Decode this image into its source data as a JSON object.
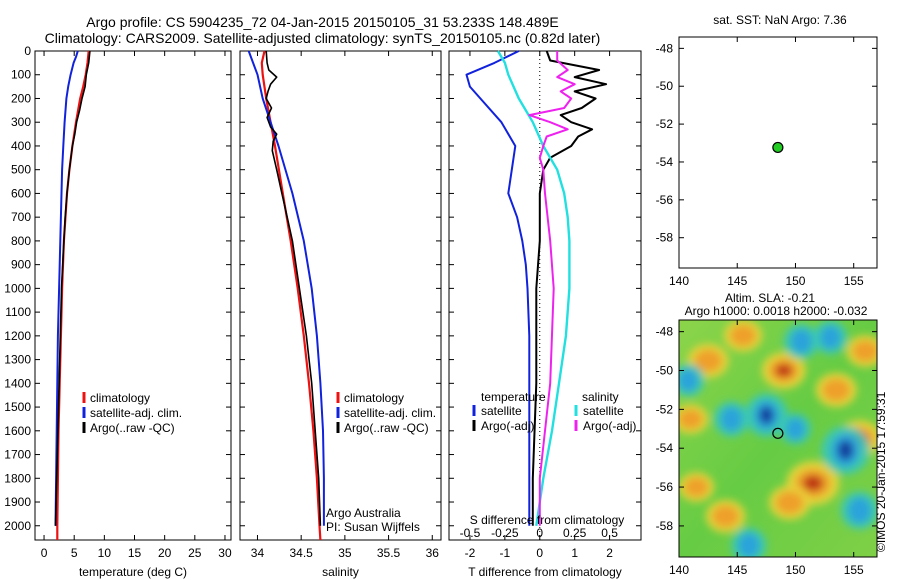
{
  "titles": {
    "line1": "Argo profile: CS 5904235_72 04-Jan-2015 20150105_31 53.233S 148.489E",
    "line2": "Climatology: CARS2009. Satellite-adjusted climatology: synTS_20150105.nc (0.82d later)",
    "sst": "sat. SST: NaN Argo: 7.36",
    "sla1": "Altim. SLA: -0.21",
    "sla2": "Argo h1000: 0.0018 h2000: -0.032",
    "credit": "©IMOS 20-Jan-2015 17:59:31"
  },
  "colors": {
    "climatology": "#ee1111",
    "satellite": "#1122dd",
    "argo": "#000000",
    "salinity_satellite": "#22e0e0",
    "salinity_argo": "#ee22ee",
    "marker": "#22cc22"
  },
  "chart_data": [
    {
      "type": "line",
      "name": "temperature",
      "xlabel": "temperature (deg C)",
      "ylim": [
        2060,
        0
      ],
      "xlim": [
        -1.5,
        31
      ],
      "xticks": [
        0,
        5,
        10,
        15,
        20,
        25,
        30
      ],
      "xtick_labels": [
        "0",
        "5",
        "10",
        "15",
        "20",
        "25",
        "30"
      ],
      "yticks": [
        0,
        100,
        200,
        300,
        400,
        500,
        600,
        700,
        800,
        900,
        1000,
        1100,
        1200,
        1300,
        1400,
        1500,
        1600,
        1700,
        1800,
        1900,
        2000
      ],
      "legend": [
        "climatology",
        "satellite-adj. clim.",
        "Argo(..raw -QC)"
      ],
      "series": [
        {
          "name": "climatology",
          "depth": [
            0,
            50,
            100,
            150,
            200,
            300,
            400,
            500,
            600,
            800,
            1000,
            1200,
            1400,
            1600,
            1800,
            2000,
            2060
          ],
          "values": [
            7.4,
            7.2,
            6.9,
            6.5,
            6.0,
            5.3,
            4.7,
            4.2,
            3.8,
            3.3,
            3.0,
            2.8,
            2.6,
            2.4,
            2.3,
            2.2,
            2.2
          ]
        },
        {
          "name": "satellite",
          "depth": [
            0,
            25,
            50,
            100,
            150,
            200,
            300,
            400,
            500,
            600,
            800,
            1000,
            1200,
            1400,
            1600,
            1800,
            2000
          ],
          "values": [
            5.6,
            5.3,
            4.9,
            4.4,
            4.0,
            3.7,
            3.4,
            3.2,
            3.0,
            2.9,
            2.7,
            2.5,
            2.3,
            2.2,
            2.1,
            2.0,
            1.9
          ]
        },
        {
          "name": "Argo",
          "depth": [
            0,
            50,
            100,
            150,
            200,
            250,
            300,
            350,
            400,
            500,
            600,
            700,
            800,
            900,
            1000,
            1200,
            1400,
            1600,
            1800,
            2000
          ],
          "values": [
            7.6,
            7.4,
            7.0,
            6.8,
            6.3,
            5.9,
            5.4,
            5.1,
            4.7,
            4.2,
            3.8,
            3.5,
            3.3,
            3.1,
            2.9,
            2.7,
            2.5,
            2.3,
            2.1,
            1.9
          ]
        }
      ]
    },
    {
      "type": "line",
      "name": "salinity",
      "xlabel": "salinity",
      "ylim": [
        2060,
        0
      ],
      "xlim": [
        33.8,
        36.1
      ],
      "xticks": [
        34,
        34.5,
        35,
        35.5,
        36
      ],
      "xtick_labels": [
        "34",
        "34.5",
        "35",
        "35.5",
        "36"
      ],
      "legend": [
        "climatology",
        "satellite-adj. clim.",
        "Argo(..raw -QC)"
      ],
      "annotation": [
        "Argo Australia",
        "PI: Susan Wijffels"
      ],
      "series": [
        {
          "name": "climatology",
          "depth": [
            0,
            50,
            100,
            200,
            300,
            400,
            600,
            800,
            1000,
            1200,
            1400,
            1600,
            1800,
            2000,
            2060
          ],
          "values": [
            34.08,
            34.05,
            34.06,
            34.1,
            34.15,
            34.2,
            34.29,
            34.38,
            34.46,
            34.53,
            34.59,
            34.64,
            34.68,
            34.71,
            34.72
          ]
        },
        {
          "name": "satellite",
          "depth": [
            0,
            50,
            100,
            200,
            300,
            400,
            600,
            800,
            1000,
            1200,
            1400,
            1600,
            1800,
            1900,
            2000
          ],
          "values": [
            33.9,
            33.95,
            34.0,
            34.06,
            34.15,
            34.24,
            34.4,
            34.53,
            34.62,
            34.68,
            34.72,
            34.75,
            34.76,
            34.76,
            34.76
          ]
        },
        {
          "name": "Argo",
          "depth": [
            0,
            50,
            80,
            110,
            140,
            170,
            200,
            240,
            280,
            320,
            350,
            380,
            420,
            500,
            600,
            700,
            800,
            1000,
            1200,
            1400,
            1600,
            1800,
            2000
          ],
          "values": [
            34.1,
            34.11,
            34.13,
            34.22,
            34.15,
            34.12,
            34.1,
            34.16,
            34.11,
            34.15,
            34.22,
            34.18,
            34.17,
            34.22,
            34.28,
            34.34,
            34.4,
            34.48,
            34.56,
            34.62,
            34.66,
            34.7,
            34.72
          ]
        }
      ]
    },
    {
      "type": "line",
      "name": "difference",
      "xlabel": "T difference from climatology",
      "x2label": "S difference from climatology",
      "ylim": [
        2060,
        0
      ],
      "xlim": [
        -2.6,
        2.9
      ],
      "xticks": [
        -2,
        -1,
        0,
        1,
        2
      ],
      "xtick_labels": [
        "-2",
        "-1",
        "0",
        "1",
        "2"
      ],
      "x2ticks": [
        -2,
        -1,
        0,
        1,
        2
      ],
      "x2tick_labels": [
        "-0.5",
        "-0.25",
        "0",
        "0.25",
        "0.5"
      ],
      "legend_headers": [
        "temperature",
        "salinity"
      ],
      "legend": [
        "satellite",
        "Argo(-adj)",
        "satellite",
        "Argo(-adj)"
      ],
      "series": [
        {
          "name": "temperature satellite",
          "depth": [
            0,
            50,
            100,
            150,
            200,
            300,
            400,
            500,
            600,
            700,
            800,
            900,
            1000,
            1200,
            1400,
            1600,
            1800,
            2000
          ],
          "values": [
            -0.6,
            -1.3,
            -2.1,
            -2.0,
            -1.7,
            -1.1,
            -0.7,
            -0.8,
            -0.9,
            -0.65,
            -0.5,
            -0.4,
            -0.35,
            -0.3,
            -0.3,
            -0.3,
            -0.3,
            -0.3
          ]
        },
        {
          "name": "temperature Argo",
          "depth": [
            0,
            40,
            80,
            110,
            140,
            170,
            200,
            240,
            270,
            300,
            330,
            360,
            400,
            450,
            500,
            600,
            800,
            1000,
            1400,
            1800,
            2000
          ],
          "values": [
            0.2,
            0.3,
            1.7,
            1.0,
            1.9,
            1.0,
            1.6,
            1.2,
            0.6,
            0.9,
            1.5,
            1.1,
            0.9,
            0.3,
            0.1,
            0.0,
            0.0,
            -0.1,
            -0.1,
            -0.2,
            -0.2
          ]
        },
        {
          "name": "salinity satellite",
          "depth": [
            0,
            50,
            100,
            200,
            300,
            400,
            500,
            600,
            700,
            800,
            1000,
            1200,
            1400,
            1600,
            1800,
            2000
          ],
          "values": [
            -1.2,
            -1.0,
            -0.9,
            -0.6,
            -0.2,
            0.1,
            0.5,
            0.7,
            0.8,
            0.85,
            0.85,
            0.75,
            0.55,
            0.35,
            0.1,
            -0.1
          ]
        },
        {
          "name": "salinity Argo",
          "depth": [
            0,
            40,
            80,
            110,
            140,
            170,
            200,
            240,
            270,
            300,
            330,
            360,
            400,
            450,
            500,
            600,
            800,
            1000,
            1400,
            1800,
            2000
          ],
          "values": [
            0.5,
            0.5,
            0.8,
            0.5,
            1.0,
            0.6,
            0.9,
            0.7,
            -0.3,
            0.3,
            0.8,
            0.2,
            0.1,
            0.0,
            0.1,
            0.15,
            0.3,
            0.4,
            0.3,
            0.0,
            0.0
          ]
        }
      ]
    },
    {
      "type": "scatter",
      "name": "sst-map",
      "xlim": [
        140,
        157
      ],
      "ylim": [
        -59.6,
        -47.4
      ],
      "xticks": [
        140,
        145,
        150,
        155
      ],
      "yticks": [
        -48,
        -50,
        -52,
        -54,
        -56,
        -58
      ],
      "points": [
        {
          "x": 148.489,
          "y": -53.233
        }
      ]
    },
    {
      "type": "heatmap",
      "name": "sla-map",
      "xlim": [
        140,
        157
      ],
      "ylim": [
        -59.6,
        -47.4
      ],
      "xticks": [
        140,
        145,
        150,
        155
      ],
      "yticks": [
        -48,
        -50,
        -52,
        -54,
        -56,
        -58
      ],
      "points": [
        {
          "x": 148.489,
          "y": -53.233
        }
      ],
      "blobs": [
        {
          "x": 142.5,
          "y": -49.5,
          "v": 0.6
        },
        {
          "x": 145.5,
          "y": -48.2,
          "v": 0.5
        },
        {
          "x": 149.0,
          "y": -50.0,
          "v": 0.7
        },
        {
          "x": 153.5,
          "y": -51.0,
          "v": 0.6
        },
        {
          "x": 156.0,
          "y": -49.0,
          "v": 0.5
        },
        {
          "x": 151.5,
          "y": -55.8,
          "v": 1.0
        },
        {
          "x": 149.5,
          "y": -56.8,
          "v": 0.6
        },
        {
          "x": 155.5,
          "y": -53.5,
          "v": 0.7
        },
        {
          "x": 144.0,
          "y": -57.5,
          "v": 0.55
        },
        {
          "x": 141.0,
          "y": -52.5,
          "v": 0.4
        },
        {
          "x": 141.5,
          "y": -56.0,
          "v": 0.4
        },
        {
          "x": 147.5,
          "y": -52.3,
          "v": -0.8
        },
        {
          "x": 154.3,
          "y": -54.1,
          "v": -1.0
        },
        {
          "x": 144.5,
          "y": -52.5,
          "v": -0.5
        },
        {
          "x": 146.0,
          "y": -59.0,
          "v": -0.5
        },
        {
          "x": 155.5,
          "y": -57.2,
          "v": -0.6
        },
        {
          "x": 150.5,
          "y": -48.5,
          "v": -0.5
        },
        {
          "x": 153.0,
          "y": -48.3,
          "v": -0.45
        },
        {
          "x": 140.8,
          "y": -50.5,
          "v": -0.4
        },
        {
          "x": 150.0,
          "y": -53.0,
          "v": -0.35
        }
      ]
    }
  ]
}
